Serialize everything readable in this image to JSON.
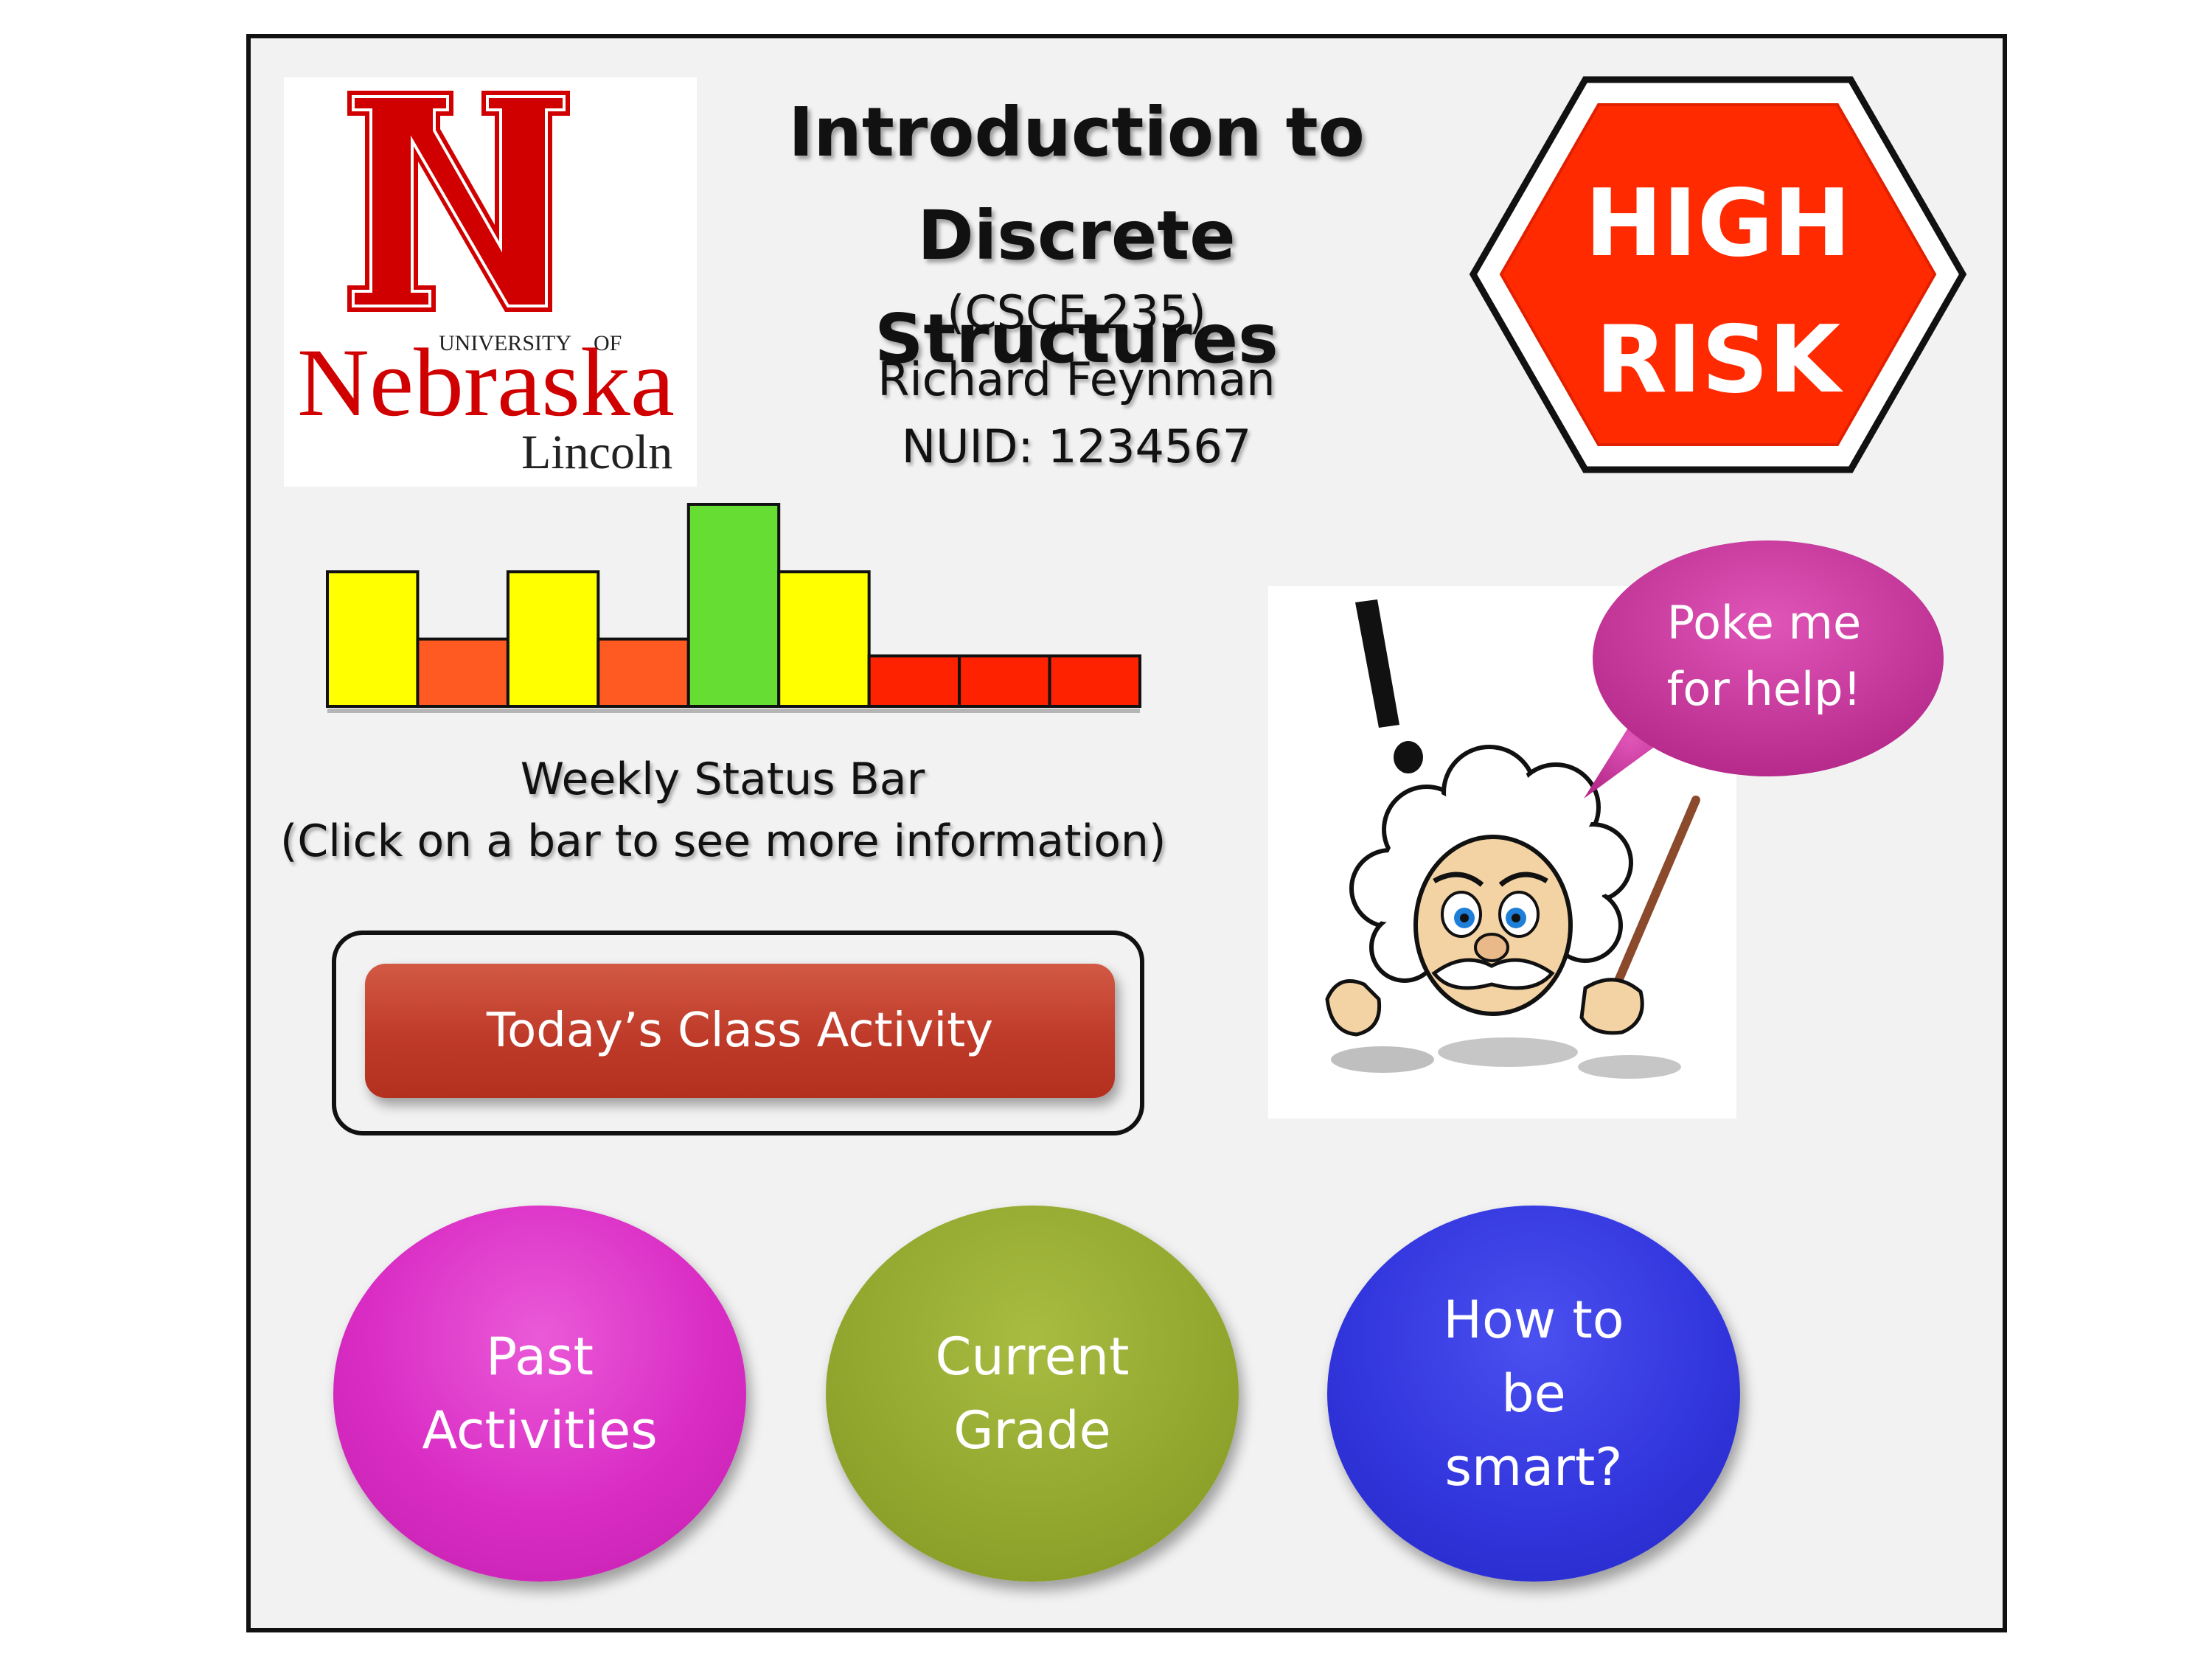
{
  "logo": {
    "letter": "N",
    "wordmark_top": "UNIVERSITY",
    "wordmark_of": "OF",
    "wordmark_main": "Nebraska",
    "wordmark_bottom": "Lincoln",
    "color": "#d00000"
  },
  "header": {
    "title_line1": "Introduction to",
    "title_line2": "Discrete Structures",
    "course_code": "(CSCE 235)",
    "student_name": "Richard Feynman",
    "nuid": "NUID: 1234567"
  },
  "risk_badge": {
    "line1": "HIGH",
    "line2": "RISK",
    "color": "#ff2a00"
  },
  "weekly_status": {
    "label": "Weekly Status Bar",
    "hint": "(Click on a bar to see more information)",
    "max_level": 3,
    "bars": [
      {
        "level": 2,
        "color": "#ffff00"
      },
      {
        "level": 1,
        "color": "#ff5a22"
      },
      {
        "level": 2,
        "color": "#ffff00"
      },
      {
        "level": 1,
        "color": "#ff5a22"
      },
      {
        "level": 3,
        "color": "#66dd33"
      },
      {
        "level": 2,
        "color": "#ffff00"
      },
      {
        "level": 0.75,
        "color": "#ff2200"
      },
      {
        "level": 0.75,
        "color": "#ff2200"
      },
      {
        "level": 0.75,
        "color": "#ff2200"
      }
    ]
  },
  "activity_button": {
    "label": "Today’s Class Activity",
    "color": "#c0392b"
  },
  "helper": {
    "icon": "professor-mascot-icon",
    "bubble_line1": "Poke me",
    "bubble_line2": "for help!",
    "bubble_color": "#c8339a"
  },
  "nav_buttons": {
    "past": {
      "line1": "Past",
      "line2": "Activities",
      "color": "#d92cc4"
    },
    "grade": {
      "line1": "Current",
      "line2": "Grade",
      "color": "#93a82f"
    },
    "smart": {
      "line1": "How to",
      "line2": "be",
      "line3": "smart?",
      "color": "#3236dd"
    }
  }
}
